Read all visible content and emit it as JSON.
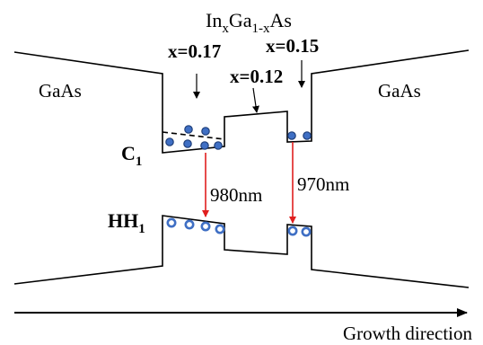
{
  "barrier_left": "GaAs",
  "barrier_right": "GaAs",
  "material": {
    "base_1": "In",
    "sub_1": "x",
    "base_2": "Ga",
    "sub_2": "1-x",
    "base_3": "As"
  },
  "compositions": {
    "left_well": "x=0.17",
    "middle_barrier": "x=0.12",
    "right_well": "x=0.15"
  },
  "levels": {
    "conduction_base": "C",
    "conduction_sub": "1",
    "heavy_hole_base": "HH",
    "heavy_hole_sub": "1"
  },
  "transitions": {
    "left": "980nm",
    "right": "970nm"
  },
  "axis_label": "Growth direction",
  "colors": {
    "electron_fill": "#3f6fc4",
    "hole_stroke": "#3f6fc4",
    "transition_arrow": "#e01f1f"
  }
}
